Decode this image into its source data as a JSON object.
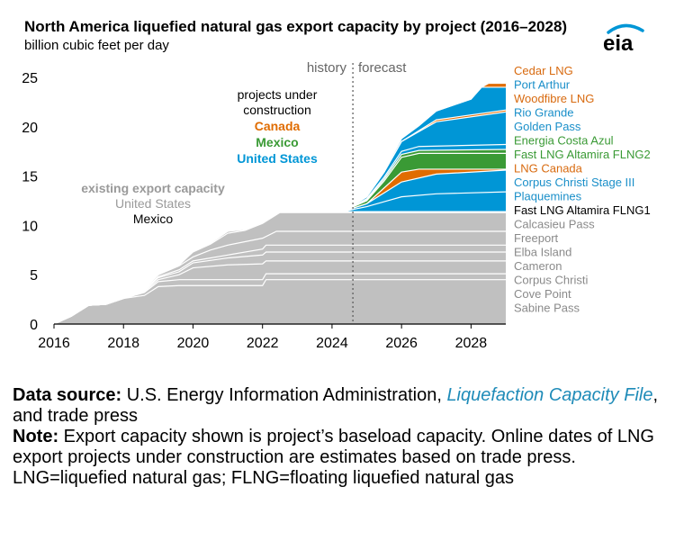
{
  "title": "North America liquefied natural gas export capacity by project (2016–2028)",
  "subtitle": "billion cubic feet per day",
  "logo_text": "eia",
  "chart_data": {
    "type": "area",
    "stacked": true,
    "xlim": [
      2016,
      2029
    ],
    "ylim": [
      0,
      25
    ],
    "x_ticks": [
      "2016",
      "2018",
      "2020",
      "2022",
      "2024",
      "2026",
      "2028"
    ],
    "y_ticks": [
      "0",
      "5",
      "10",
      "15",
      "20",
      "25"
    ],
    "history_label": "history",
    "forecast_label": "forecast",
    "forecast_start": 2024.6,
    "colors": {
      "existing": "#c0c0c0",
      "united_states": "#0096d6",
      "canada": "#e06c00",
      "mexico": "#3a9a35",
      "separator": "#ffffff"
    },
    "annotations": {
      "projects_under": "projects under",
      "construction": "construction",
      "canada": "Canada",
      "mexico": "Mexico",
      "united_states": "United States",
      "existing_capacity": "existing export capacity",
      "existing_us": "United States",
      "existing_mexico": "Mexico"
    },
    "series": [
      {
        "name": "Sabine Pass",
        "group": "existing",
        "points": [
          [
            2016,
            0
          ],
          [
            2016.5,
            0.8
          ],
          [
            2017,
            1.9
          ],
          [
            2017.5,
            2
          ],
          [
            2018,
            2.6
          ],
          [
            2018.6,
            2.9
          ],
          [
            2019,
            3.8
          ],
          [
            2019.6,
            3.9
          ],
          [
            2022,
            3.9
          ],
          [
            2022.1,
            4.5
          ],
          [
            2029,
            4.5
          ]
        ]
      },
      {
        "name": "Cove Point",
        "group": "existing",
        "points": [
          [
            2016,
            0
          ],
          [
            2016.5,
            0.8
          ],
          [
            2017,
            1.9
          ],
          [
            2017.5,
            2
          ],
          [
            2018,
            2.6
          ],
          [
            2018.6,
            3.2
          ],
          [
            2019,
            4.3
          ],
          [
            2019.6,
            4.5
          ],
          [
            2022,
            4.5
          ],
          [
            2022.1,
            5.1
          ],
          [
            2029,
            5.1
          ]
        ]
      },
      {
        "name": "Corpus Christi",
        "group": "existing",
        "points": [
          [
            2016,
            0
          ],
          [
            2016.5,
            0.8
          ],
          [
            2017,
            1.9
          ],
          [
            2017.5,
            2
          ],
          [
            2018,
            2.6
          ],
          [
            2018.6,
            3.3
          ],
          [
            2019,
            4.5
          ],
          [
            2019.6,
            5
          ],
          [
            2020,
            5.7
          ],
          [
            2021,
            6
          ],
          [
            2022,
            6.1
          ],
          [
            2022.1,
            6.4
          ],
          [
            2029,
            6.4
          ]
        ]
      },
      {
        "name": "Cameron",
        "group": "existing",
        "points": [
          [
            2016,
            0
          ],
          [
            2016.5,
            0.8
          ],
          [
            2017,
            1.9
          ],
          [
            2017.5,
            2
          ],
          [
            2018,
            2.6
          ],
          [
            2018.6,
            3.4
          ],
          [
            2019,
            4.7
          ],
          [
            2019.6,
            5.3
          ],
          [
            2020,
            6.2
          ],
          [
            2021,
            6.7
          ],
          [
            2022,
            7
          ],
          [
            2022.1,
            7.3
          ],
          [
            2029,
            7.3
          ]
        ]
      },
      {
        "name": "Elba Island",
        "group": "existing",
        "points": [
          [
            2016,
            0
          ],
          [
            2016.5,
            0.8
          ],
          [
            2017,
            1.9
          ],
          [
            2017.5,
            2
          ],
          [
            2018,
            2.6
          ],
          [
            2018.6,
            3.5
          ],
          [
            2019,
            4.8
          ],
          [
            2019.6,
            5.5
          ],
          [
            2020,
            6.4
          ],
          [
            2021,
            7
          ],
          [
            2022,
            7.6
          ],
          [
            2022.1,
            8
          ],
          [
            2029,
            8
          ]
        ]
      },
      {
        "name": "Freeport",
        "group": "existing",
        "points": [
          [
            2016,
            0
          ],
          [
            2016.5,
            0.8
          ],
          [
            2017,
            1.9
          ],
          [
            2017.5,
            2
          ],
          [
            2018,
            2.6
          ],
          [
            2018.6,
            3.6
          ],
          [
            2019,
            5
          ],
          [
            2019.6,
            5.9
          ],
          [
            2020,
            6.8
          ],
          [
            2020.5,
            7.5
          ],
          [
            2021,
            8
          ],
          [
            2022,
            8.7
          ],
          [
            2022.4,
            9.4
          ],
          [
            2029,
            9.4
          ]
        ]
      },
      {
        "name": "Calcasieu Pass",
        "group": "existing",
        "points": [
          [
            2016,
            0
          ],
          [
            2016.5,
            0.8
          ],
          [
            2017,
            1.9
          ],
          [
            2017.5,
            2
          ],
          [
            2018,
            2.6
          ],
          [
            2018.6,
            3.6
          ],
          [
            2019,
            5
          ],
          [
            2019.6,
            6
          ],
          [
            2020,
            7.3
          ],
          [
            2020.5,
            8.1
          ],
          [
            2021,
            9.2
          ],
          [
            2021.5,
            9.5
          ],
          [
            2022,
            10.2
          ],
          [
            2022.5,
            11.3
          ],
          [
            2029,
            11.3
          ]
        ]
      },
      {
        "name": "Fast LNG Altamira FLNG1",
        "group": "existing",
        "points": [
          [
            2016,
            0
          ],
          [
            2016.5,
            0.8
          ],
          [
            2017,
            1.9
          ],
          [
            2017.5,
            2
          ],
          [
            2018,
            2.6
          ],
          [
            2018.6,
            3.6
          ],
          [
            2019,
            5
          ],
          [
            2019.6,
            6
          ],
          [
            2020,
            7.4
          ],
          [
            2020.5,
            8.2
          ],
          [
            2021,
            9.4
          ],
          [
            2021.5,
            9.6
          ],
          [
            2022,
            10.3
          ],
          [
            2022.5,
            11.4
          ],
          [
            2029,
            11.4
          ]
        ]
      },
      {
        "name": "Plaquemines",
        "group": "united_states",
        "points": [
          [
            2024.3,
            11.4
          ],
          [
            2025,
            11.9
          ],
          [
            2025.5,
            12.4
          ],
          [
            2026,
            12.9
          ],
          [
            2027,
            13.2
          ],
          [
            2029,
            13.4
          ]
        ]
      },
      {
        "name": "Corpus Christi Stage III",
        "group": "united_states",
        "points": [
          [
            2024.3,
            11.4
          ],
          [
            2025,
            12.2
          ],
          [
            2025.5,
            13.3
          ],
          [
            2026,
            14.4
          ],
          [
            2027,
            15.2
          ],
          [
            2029,
            15.6
          ]
        ]
      },
      {
        "name": "LNG Canada",
        "group": "canada",
        "points": [
          [
            2024.3,
            11.4
          ],
          [
            2025,
            12.2
          ],
          [
            2025.5,
            13.8
          ],
          [
            2026,
            15.4
          ],
          [
            2026.5,
            15.7
          ],
          [
            2029,
            15.7
          ]
        ]
      },
      {
        "name": "Fast LNG Altamira FLNG2",
        "group": "mexico",
        "points": [
          [
            2024.3,
            11.4
          ],
          [
            2025,
            12.5
          ],
          [
            2025.5,
            14.5
          ],
          [
            2026,
            16.9
          ],
          [
            2026.5,
            17.3
          ],
          [
            2029,
            17.3
          ]
        ]
      },
      {
        "name": "Energia Costa Azul",
        "group": "mexico",
        "points": [
          [
            2024.3,
            11.4
          ],
          [
            2025,
            12.6
          ],
          [
            2025.5,
            14.7
          ],
          [
            2026,
            17.2
          ],
          [
            2026.5,
            17.6
          ],
          [
            2029,
            17.7
          ]
        ]
      },
      {
        "name": "Golden Pass",
        "group": "united_states",
        "points": [
          [
            2024.3,
            11.4
          ],
          [
            2025,
            12.7
          ],
          [
            2025.5,
            14.9
          ],
          [
            2026,
            17.5
          ],
          [
            2026.5,
            18
          ],
          [
            2029,
            18.2
          ]
        ]
      },
      {
        "name": "Rio Grande",
        "group": "united_states",
        "points": [
          [
            2024.3,
            11.4
          ],
          [
            2025,
            12.9
          ],
          [
            2025.5,
            15.4
          ],
          [
            2026,
            18.5
          ],
          [
            2026.5,
            19.5
          ],
          [
            2027,
            20.5
          ],
          [
            2029,
            21.5
          ]
        ]
      },
      {
        "name": "Woodfibre LNG",
        "group": "canada",
        "points": [
          [
            2024.3,
            11.4
          ],
          [
            2025,
            12.9
          ],
          [
            2025.5,
            15.4
          ],
          [
            2026,
            18.5
          ],
          [
            2026.5,
            19.6
          ],
          [
            2027,
            20.7
          ],
          [
            2029,
            21.7
          ]
        ]
      },
      {
        "name": "Port Arthur",
        "group": "united_states",
        "points": [
          [
            2024.3,
            11.4
          ],
          [
            2025,
            13
          ],
          [
            2025.5,
            15.6
          ],
          [
            2026,
            18.8
          ],
          [
            2026.5,
            20.1
          ],
          [
            2027,
            21.6
          ],
          [
            2028,
            22.8
          ],
          [
            2028.3,
            24
          ],
          [
            2029,
            24
          ]
        ]
      },
      {
        "name": "Cedar LNG",
        "group": "canada",
        "points": [
          [
            2024.3,
            11.4
          ],
          [
            2025,
            13
          ],
          [
            2025.5,
            15.6
          ],
          [
            2026,
            18.8
          ],
          [
            2026.5,
            20.1
          ],
          [
            2027,
            21.6
          ],
          [
            2028,
            22.8
          ],
          [
            2028.3,
            24
          ],
          [
            2028.5,
            24.4
          ],
          [
            2029,
            24.4
          ]
        ]
      }
    ],
    "legend": [
      {
        "label": "Cedar LNG",
        "group": "canada"
      },
      {
        "label": "Port Arthur",
        "group": "united_states"
      },
      {
        "label": "Woodfibre LNG",
        "group": "canada"
      },
      {
        "label": "Rio Grande",
        "group": "united_states"
      },
      {
        "label": "Golden Pass",
        "group": "united_states"
      },
      {
        "label": "Energia Costa Azul",
        "group": "mexico"
      },
      {
        "label": "Fast LNG Altamira FLNG2",
        "group": "mexico"
      },
      {
        "label": "LNG Canada",
        "group": "canada"
      },
      {
        "label": "Corpus Christi Stage III",
        "group": "united_states"
      },
      {
        "label": "Plaquemines",
        "group": "united_states"
      },
      {
        "label": "Fast LNG Altamira FLNG1",
        "group": "existing_mexico"
      },
      {
        "label": "Calcasieu Pass",
        "group": "existing"
      },
      {
        "label": "Freeport",
        "group": "existing"
      },
      {
        "label": "Elba Island",
        "group": "existing"
      },
      {
        "label": "Cameron",
        "group": "existing"
      },
      {
        "label": "Corpus Christi",
        "group": "existing"
      },
      {
        "label": "Cove Point",
        "group": "existing"
      },
      {
        "label": "Sabine Pass",
        "group": "existing"
      }
    ]
  },
  "footer": {
    "source_heading": "Data source:",
    "source_text_1": "U.S. Energy Information Administration,",
    "source_link": "Liquefaction Capacity File",
    "source_text_2": ", and trade press",
    "note_heading": "Note:",
    "note_text": "Export capacity shown is project’s baseload capacity. Online dates of LNG export projects under construction are estimates based on trade press. LNG=liquefied natural gas; FLNG=floating liquefied natural gas"
  }
}
